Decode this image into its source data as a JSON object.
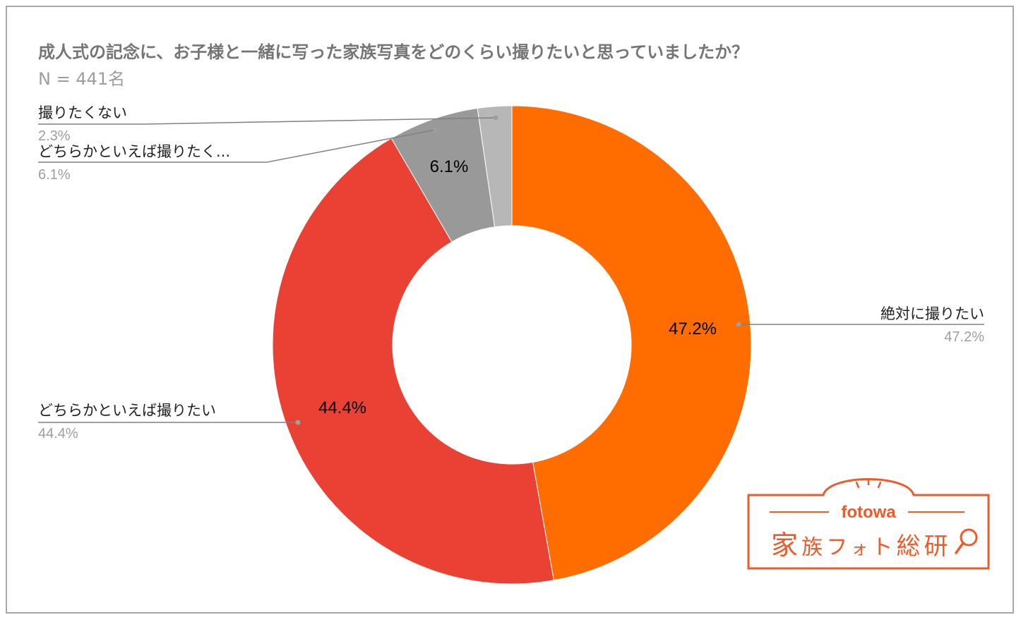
{
  "title": "成人式の記念に、お子様と一緒に写った家族写真をどのくらい撮りたいと思っていましたか？",
  "subtitle": "N = 441名",
  "chart_data": {
    "type": "pie",
    "donut": true,
    "title": "成人式の記念に、お子様と一緒に写った家族写真をどのくらい撮りたいと思っていましたか？",
    "subtitle": "N = 441名",
    "slices": [
      {
        "label": "絶対に撮りたい",
        "value": 47.2,
        "value_label": "47.2%",
        "color": "#ff6d01",
        "inner_label": "47.2%"
      },
      {
        "label": "どちらかといえば撮りたい",
        "value": 44.4,
        "value_label": "44.4%",
        "color": "#e94235",
        "inner_label": "44.4%"
      },
      {
        "label": "どちらかといえば撮りたく...",
        "value": 6.1,
        "value_label": "6.1%",
        "color": "#999999",
        "inner_label": "6.1%"
      },
      {
        "label": "撮りたくない",
        "value": 2.3,
        "value_label": "2.3%",
        "color": "#b7b7b7",
        "inner_label": ""
      }
    ]
  },
  "logo": {
    "brand": "fotowa",
    "name_parts": [
      "家",
      "族",
      "フ",
      "ォ",
      "ト",
      "総",
      "研"
    ],
    "color": "#f05a28"
  }
}
